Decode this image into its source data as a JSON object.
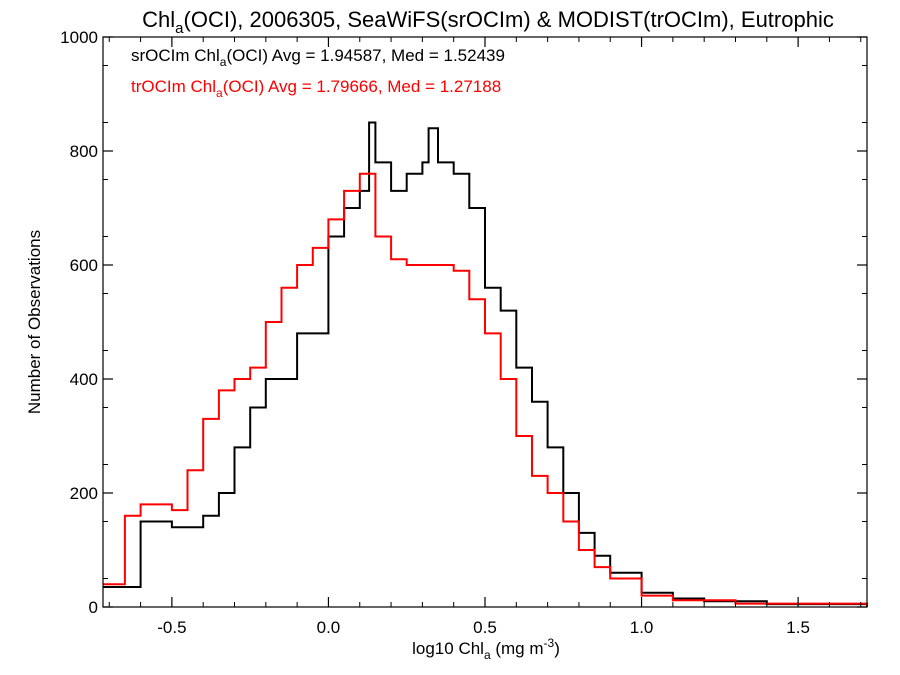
{
  "chart_data": {
    "type": "step-histogram",
    "title": {
      "prefix": "Chl",
      "sub": "a",
      "rest": "(OCI), 2006305, SeaWiFS(srOCIm) & MODIST(trOCIm), Eutrophic"
    },
    "xlabel": {
      "prefix": "log10 Chl",
      "sub": "a",
      "middle": " (mg m",
      "sup": "-3",
      "suffix": ")"
    },
    "ylabel": "Number of Observations",
    "xlim": [
      -0.72,
      1.72
    ],
    "ylim": [
      0,
      1000
    ],
    "x_ticks": [
      -0.5,
      0.0,
      0.5,
      1.0,
      1.5
    ],
    "x_tick_labels": [
      "-0.5",
      "0.0",
      "0.5",
      "1.0",
      "1.5"
    ],
    "y_ticks": [
      0,
      200,
      400,
      600,
      800,
      1000
    ],
    "y_tick_labels": [
      "0",
      "200",
      "400",
      "600",
      "800",
      "1000"
    ],
    "grid": false,
    "legend_position": "top-left",
    "series": [
      {
        "name": "srOCIm",
        "color": "#000000",
        "legend": {
          "prefix": "srOCIm Chl",
          "sub": "a",
          "suffix": "(OCI) Avg = 1.94587, Med = 1.52439"
        },
        "points": [
          [
            -0.72,
            35
          ],
          [
            -0.6,
            150
          ],
          [
            -0.5,
            140
          ],
          [
            -0.4,
            160
          ],
          [
            -0.35,
            200
          ],
          [
            -0.3,
            280
          ],
          [
            -0.25,
            350
          ],
          [
            -0.2,
            400
          ],
          [
            -0.1,
            480
          ],
          [
            0.0,
            650
          ],
          [
            0.05,
            700
          ],
          [
            0.1,
            730
          ],
          [
            0.13,
            850
          ],
          [
            0.15,
            780
          ],
          [
            0.2,
            730
          ],
          [
            0.25,
            760
          ],
          [
            0.3,
            780
          ],
          [
            0.32,
            840
          ],
          [
            0.35,
            780
          ],
          [
            0.4,
            760
          ],
          [
            0.45,
            700
          ],
          [
            0.5,
            560
          ],
          [
            0.55,
            520
          ],
          [
            0.6,
            420
          ],
          [
            0.65,
            360
          ],
          [
            0.7,
            280
          ],
          [
            0.75,
            200
          ],
          [
            0.8,
            130
          ],
          [
            0.85,
            90
          ],
          [
            0.9,
            60
          ],
          [
            1.0,
            25
          ],
          [
            1.1,
            15
          ],
          [
            1.2,
            10
          ],
          [
            1.4,
            5
          ],
          [
            1.72,
            0
          ]
        ]
      },
      {
        "name": "trOCIm",
        "color": "#ff0000",
        "legend": {
          "prefix": "trOCIm Chl",
          "sub": "a",
          "suffix": "(OCI) Avg = 1.79666, Med = 1.27188"
        },
        "points": [
          [
            -0.72,
            40
          ],
          [
            -0.65,
            160
          ],
          [
            -0.6,
            180
          ],
          [
            -0.5,
            170
          ],
          [
            -0.45,
            240
          ],
          [
            -0.4,
            330
          ],
          [
            -0.35,
            380
          ],
          [
            -0.3,
            400
          ],
          [
            -0.25,
            420
          ],
          [
            -0.2,
            500
          ],
          [
            -0.15,
            560
          ],
          [
            -0.1,
            600
          ],
          [
            -0.05,
            630
          ],
          [
            0.0,
            680
          ],
          [
            0.05,
            730
          ],
          [
            0.1,
            760
          ],
          [
            0.15,
            650
          ],
          [
            0.2,
            610
          ],
          [
            0.25,
            600
          ],
          [
            0.3,
            600
          ],
          [
            0.35,
            600
          ],
          [
            0.4,
            590
          ],
          [
            0.45,
            540
          ],
          [
            0.5,
            480
          ],
          [
            0.55,
            400
          ],
          [
            0.6,
            300
          ],
          [
            0.65,
            230
          ],
          [
            0.7,
            200
          ],
          [
            0.75,
            150
          ],
          [
            0.8,
            100
          ],
          [
            0.85,
            70
          ],
          [
            0.9,
            50
          ],
          [
            1.0,
            20
          ],
          [
            1.1,
            12
          ],
          [
            1.3,
            6
          ],
          [
            1.72,
            0
          ]
        ]
      }
    ]
  }
}
